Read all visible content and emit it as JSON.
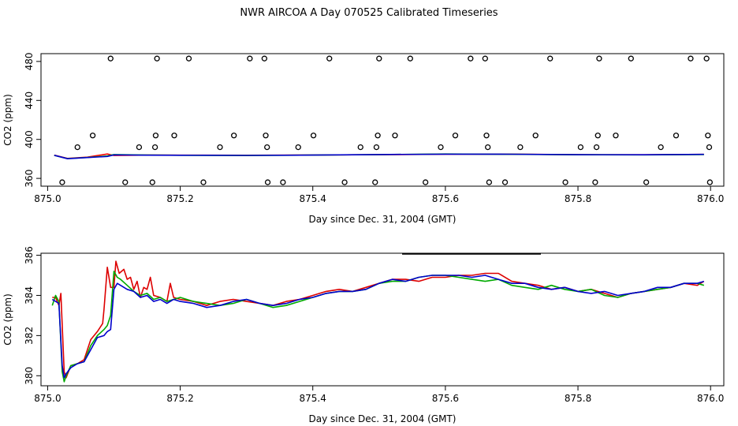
{
  "title": "NWR AIRCOA A  Day 070525  Calibrated Timeseries",
  "chart_data": [
    {
      "type": "scatter",
      "xlabel": "Day since Dec. 31, 2004 (GMT)",
      "ylabel": "CO2 (ppm)",
      "xlim": [
        874.99,
        876.02
      ],
      "ylim": [
        352,
        488
      ],
      "xticks": [
        "875.0",
        "875.2",
        "875.4",
        "875.6",
        "875.8",
        "876.0"
      ],
      "yticks": [
        "360",
        "400",
        "440",
        "480"
      ],
      "points": [
        {
          "x": 875.022,
          "y": 356
        },
        {
          "x": 875.045,
          "y": 392
        },
        {
          "x": 875.068,
          "y": 404
        },
        {
          "x": 875.095,
          "y": 483
        },
        {
          "x": 875.117,
          "y": 356
        },
        {
          "x": 875.138,
          "y": 392
        },
        {
          "x": 875.158,
          "y": 356
        },
        {
          "x": 875.162,
          "y": 392
        },
        {
          "x": 875.163,
          "y": 404
        },
        {
          "x": 875.165,
          "y": 483
        },
        {
          "x": 875.191,
          "y": 404
        },
        {
          "x": 875.213,
          "y": 483
        },
        {
          "x": 875.235,
          "y": 356
        },
        {
          "x": 875.26,
          "y": 392
        },
        {
          "x": 875.281,
          "y": 404
        },
        {
          "x": 875.305,
          "y": 483
        },
        {
          "x": 875.327,
          "y": 483
        },
        {
          "x": 875.329,
          "y": 404
        },
        {
          "x": 875.331,
          "y": 392
        },
        {
          "x": 875.332,
          "y": 356
        },
        {
          "x": 875.355,
          "y": 356
        },
        {
          "x": 875.378,
          "y": 392
        },
        {
          "x": 875.401,
          "y": 404
        },
        {
          "x": 875.425,
          "y": 483
        },
        {
          "x": 875.448,
          "y": 356
        },
        {
          "x": 875.472,
          "y": 392
        },
        {
          "x": 875.494,
          "y": 356
        },
        {
          "x": 875.496,
          "y": 392
        },
        {
          "x": 875.498,
          "y": 404
        },
        {
          "x": 875.5,
          "y": 483
        },
        {
          "x": 875.524,
          "y": 404
        },
        {
          "x": 875.547,
          "y": 483
        },
        {
          "x": 875.57,
          "y": 356
        },
        {
          "x": 875.593,
          "y": 392
        },
        {
          "x": 875.615,
          "y": 404
        },
        {
          "x": 875.638,
          "y": 483
        },
        {
          "x": 875.66,
          "y": 483
        },
        {
          "x": 875.662,
          "y": 404
        },
        {
          "x": 875.664,
          "y": 392
        },
        {
          "x": 875.666,
          "y": 356
        },
        {
          "x": 875.69,
          "y": 356
        },
        {
          "x": 875.713,
          "y": 392
        },
        {
          "x": 875.736,
          "y": 404
        },
        {
          "x": 875.758,
          "y": 483
        },
        {
          "x": 875.781,
          "y": 356
        },
        {
          "x": 875.804,
          "y": 392
        },
        {
          "x": 875.826,
          "y": 356
        },
        {
          "x": 875.828,
          "y": 392
        },
        {
          "x": 875.83,
          "y": 404
        },
        {
          "x": 875.832,
          "y": 483
        },
        {
          "x": 875.857,
          "y": 404
        },
        {
          "x": 875.88,
          "y": 483
        },
        {
          "x": 875.903,
          "y": 356
        },
        {
          "x": 875.925,
          "y": 392
        },
        {
          "x": 875.948,
          "y": 404
        },
        {
          "x": 875.97,
          "y": 483
        },
        {
          "x": 875.994,
          "y": 483
        },
        {
          "x": 875.996,
          "y": 404
        },
        {
          "x": 875.998,
          "y": 392
        },
        {
          "x": 875.999,
          "y": 356
        }
      ],
      "series": [
        {
          "name": "red",
          "color": "#ff0000",
          "x": [
            875.01,
            875.03,
            875.06,
            875.09,
            875.1,
            875.15,
            875.2,
            875.3,
            875.4,
            875.5,
            875.6,
            875.7,
            875.8,
            875.9,
            875.99
          ],
          "values": [
            383.8,
            380.5,
            381.8,
            385,
            383.5,
            383.9,
            383.8,
            383.7,
            384,
            384.3,
            384.8,
            384.9,
            384.3,
            384.2,
            384.6
          ]
        },
        {
          "name": "green",
          "color": "#00bb00",
          "x": [
            875.01,
            875.03,
            875.06,
            875.09,
            875.1,
            875.15,
            875.2,
            875.3,
            875.4,
            875.5,
            875.6,
            875.7,
            875.8,
            875.9,
            875.99
          ],
          "values": [
            383.6,
            380.3,
            381.5,
            383,
            384.5,
            384,
            383.7,
            383.5,
            383.9,
            384.4,
            385,
            384.7,
            384.2,
            384.1,
            384.5
          ]
        },
        {
          "name": "blue",
          "color": "#0000cc",
          "x": [
            875.01,
            875.03,
            875.06,
            875.09,
            875.1,
            875.15,
            875.2,
            875.3,
            875.4,
            875.5,
            875.6,
            875.7,
            875.8,
            875.9,
            875.99
          ],
          "values": [
            383.7,
            380.2,
            381.4,
            382.5,
            384.1,
            383.8,
            383.7,
            383.6,
            383.9,
            384.5,
            384.9,
            384.8,
            384.3,
            384.2,
            384.6
          ]
        }
      ]
    },
    {
      "type": "line",
      "xlabel": "Day since Dec. 31, 2004 (GMT)",
      "ylabel": "CO2 (ppm)",
      "xlim": [
        874.99,
        876.02
      ],
      "ylim": [
        379.5,
        386.1
      ],
      "xticks": [
        "875.0",
        "875.2",
        "875.4",
        "875.6",
        "875.8",
        "876.0"
      ],
      "yticks": [
        "380",
        "382",
        "384",
        "386"
      ],
      "series": [
        {
          "name": "red",
          "color": "#dd0000",
          "x": [
            875.007,
            875.012,
            875.017,
            875.02,
            875.025,
            875.028,
            875.035,
            875.045,
            875.055,
            875.065,
            875.075,
            875.083,
            875.085,
            875.09,
            875.095,
            875.1,
            875.103,
            875.108,
            875.115,
            875.12,
            875.125,
            875.13,
            875.135,
            875.14,
            875.145,
            875.15,
            875.155,
            875.16,
            875.17,
            875.18,
            875.185,
            875.19,
            875.2,
            875.22,
            875.24,
            875.26,
            875.28,
            875.3,
            875.32,
            875.34,
            875.36,
            875.38,
            875.4,
            875.42,
            875.44,
            875.46,
            875.48,
            875.5,
            875.52,
            875.54,
            875.56,
            875.58,
            875.6,
            875.62,
            875.64,
            875.66,
            875.68,
            875.7,
            875.72,
            875.74,
            875.76,
            875.78,
            875.8,
            875.82,
            875.84,
            875.86,
            875.88,
            875.9,
            875.92,
            875.94,
            875.96,
            875.98,
            875.99
          ],
          "values": [
            383.9,
            383.9,
            383.5,
            384.1,
            380.2,
            379.9,
            380.5,
            380.6,
            380.8,
            381.8,
            382.2,
            382.6,
            383.3,
            385.4,
            384.4,
            384.4,
            385.7,
            385.1,
            385.3,
            384.8,
            384.9,
            384.3,
            384.7,
            383.9,
            384.4,
            384.3,
            384.9,
            384,
            383.9,
            383.7,
            384.6,
            383.9,
            383.8,
            383.7,
            383.5,
            383.7,
            383.8,
            383.7,
            383.6,
            383.5,
            383.7,
            383.8,
            384,
            384.2,
            384.3,
            384.2,
            384.4,
            384.6,
            384.8,
            384.8,
            384.7,
            384.9,
            384.9,
            385,
            385,
            385.1,
            385.1,
            384.7,
            384.6,
            384.5,
            384.3,
            384.4,
            384.2,
            384.3,
            384.1,
            383.9,
            384.1,
            384.2,
            384.3,
            384.4,
            384.6,
            384.5,
            384.7
          ]
        },
        {
          "name": "green",
          "color": "#00aa00",
          "x": [
            875.007,
            875.012,
            875.017,
            875.022,
            875.025,
            875.028,
            875.035,
            875.045,
            875.055,
            875.065,
            875.075,
            875.085,
            875.09,
            875.095,
            875.1,
            875.105,
            875.11,
            875.12,
            875.13,
            875.14,
            875.15,
            875.16,
            875.17,
            875.18,
            875.19,
            875.2,
            875.22,
            875.24,
            875.26,
            875.28,
            875.3,
            875.32,
            875.34,
            875.36,
            875.38,
            875.4,
            875.42,
            875.44,
            875.46,
            875.48,
            875.5,
            875.52,
            875.54,
            875.56,
            875.58,
            875.6,
            875.62,
            875.64,
            875.66,
            875.68,
            875.7,
            875.72,
            875.74,
            875.76,
            875.78,
            875.8,
            875.82,
            875.84,
            875.86,
            875.88,
            875.9,
            875.92,
            875.94,
            875.96,
            875.98,
            875.99
          ],
          "values": [
            383.5,
            384,
            383.7,
            380.2,
            379.7,
            380,
            380.5,
            380.6,
            380.7,
            381.5,
            382,
            382.3,
            382.5,
            383,
            385.2,
            384.9,
            384.8,
            384.5,
            384.2,
            384,
            384.1,
            383.8,
            383.9,
            383.7,
            383.8,
            383.9,
            383.7,
            383.6,
            383.5,
            383.6,
            383.8,
            383.6,
            383.4,
            383.5,
            383.7,
            383.9,
            384.1,
            384.2,
            384.2,
            384.3,
            384.6,
            384.7,
            384.7,
            384.9,
            385,
            385,
            384.9,
            384.8,
            384.7,
            384.8,
            384.5,
            384.4,
            384.3,
            384.5,
            384.3,
            384.2,
            384.3,
            384,
            383.9,
            384.1,
            384.2,
            384.3,
            384.4,
            384.6,
            384.6,
            384.5
          ]
        },
        {
          "name": "blue",
          "color": "#0000cc",
          "x": [
            875.007,
            875.012,
            875.017,
            875.022,
            875.025,
            875.028,
            875.035,
            875.045,
            875.055,
            875.065,
            875.075,
            875.085,
            875.09,
            875.095,
            875.1,
            875.105,
            875.11,
            875.12,
            875.13,
            875.14,
            875.15,
            875.16,
            875.17,
            875.18,
            875.19,
            875.2,
            875.22,
            875.24,
            875.26,
            875.28,
            875.3,
            875.32,
            875.34,
            875.36,
            875.38,
            875.4,
            875.42,
            875.44,
            875.46,
            875.48,
            875.5,
            875.52,
            875.54,
            875.56,
            875.58,
            875.6,
            875.62,
            875.64,
            875.66,
            875.68,
            875.7,
            875.72,
            875.74,
            875.76,
            875.78,
            875.8,
            875.82,
            875.84,
            875.86,
            875.88,
            875.9,
            875.92,
            875.94,
            875.96,
            875.98,
            875.99
          ],
          "values": [
            383.8,
            383.7,
            383.6,
            380.5,
            379.9,
            380.1,
            380.4,
            380.6,
            380.7,
            381.3,
            381.9,
            382,
            382.2,
            382.3,
            384.3,
            384.6,
            384.5,
            384.3,
            384.2,
            383.9,
            384,
            383.7,
            383.8,
            383.6,
            383.8,
            383.7,
            383.6,
            383.4,
            383.5,
            383.7,
            383.8,
            383.6,
            383.5,
            383.6,
            383.8,
            383.9,
            384.1,
            384.2,
            384.2,
            384.3,
            384.6,
            384.8,
            384.7,
            384.9,
            385,
            385,
            385,
            384.9,
            385,
            384.8,
            384.6,
            384.6,
            384.4,
            384.3,
            384.4,
            384.2,
            384.1,
            384.2,
            384,
            384.1,
            384.2,
            384.4,
            384.4,
            384.6,
            384.6,
            384.7
          ]
        }
      ]
    }
  ]
}
